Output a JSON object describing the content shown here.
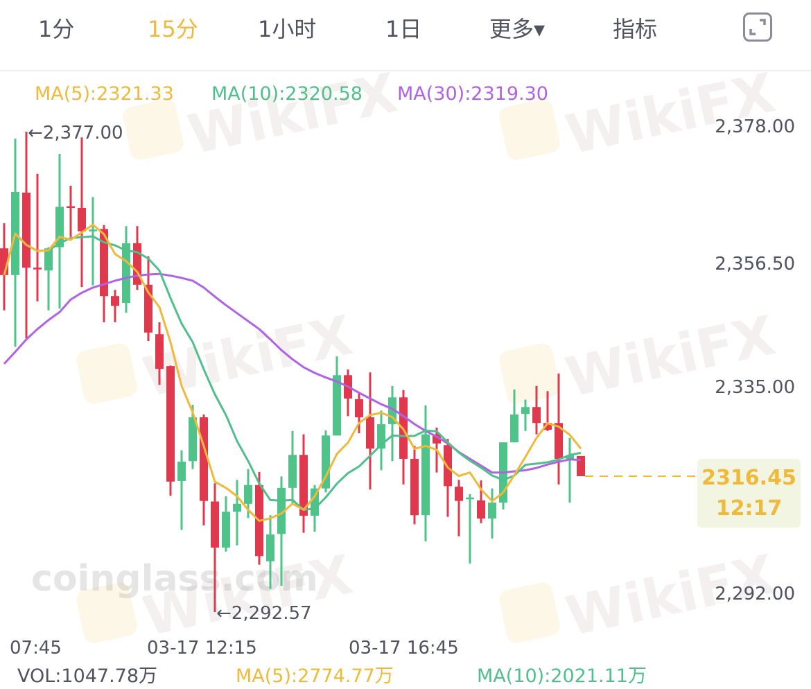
{
  "tabs": [
    {
      "label": "1分",
      "active": false
    },
    {
      "label": "15分",
      "active": true
    },
    {
      "label": "1小时",
      "active": false
    },
    {
      "label": "1日",
      "active": false
    },
    {
      "label": "更多▾",
      "active": false
    },
    {
      "label": "指标",
      "active": false
    }
  ],
  "fullscreen_icon": "expand-icon",
  "ma_legend": {
    "ma5": "MA(5):2321.33",
    "ma10": "MA(10):2320.58",
    "ma30": "MA(30):2319.30"
  },
  "watermarks": {
    "wikifx": "WikiFX",
    "coinglass": "coinglass.com"
  },
  "colors": {
    "up": "#4fc38a",
    "down": "#e0384d",
    "ma5": "#f0b93a",
    "ma10": "#4fbf8c",
    "ma30": "#b062e6",
    "active_tab": "#f0b93a",
    "text": "#50535f"
  },
  "markers": {
    "high": "←2,377.00",
    "low": "←2,292.57"
  },
  "current": {
    "price": "2316.45",
    "time": "12:17"
  },
  "volume_legend": {
    "vol": "VOL:1047.78万",
    "ma5": "MA(5):2774.77万",
    "ma10": "MA(10):2021.11万"
  },
  "chart_data": {
    "type": "candlestick",
    "interval": "15分",
    "y_ticks": [
      "2,378.00",
      "2,356.50",
      "2,335.00",
      "2,292.00"
    ],
    "x_ticks": [
      "07:45",
      "03-17 12:15",
      "03-17 16:45"
    ],
    "ylim": [
      2292,
      2378
    ],
    "last_price": 2316.45,
    "ohlc": [
      [
        2356.5,
        2360.9,
        2345.6,
        2351.8
      ],
      [
        2351.8,
        2375.8,
        2339.2,
        2366.4
      ],
      [
        2366.3,
        2377.0,
        2340.7,
        2353.1
      ],
      [
        2353.1,
        2369.6,
        2347.2,
        2352.9
      ],
      [
        2352.6,
        2356.7,
        2345.6,
        2356.5
      ],
      [
        2356.7,
        2373.1,
        2345.9,
        2363.8
      ],
      [
        2363.9,
        2367.5,
        2358.5,
        2363.7
      ],
      [
        2363.6,
        2376.0,
        2349.7,
        2359.5
      ],
      [
        2359.6,
        2365.5,
        2350.0,
        2359.8
      ],
      [
        2359.9,
        2360.6,
        2343.5,
        2348.1
      ],
      [
        2348.1,
        2349.2,
        2343.5,
        2346.4
      ],
      [
        2346.9,
        2360.4,
        2345.2,
        2357.4
      ],
      [
        2357.4,
        2360.4,
        2349.2,
        2350.1
      ],
      [
        2350.1,
        2355.1,
        2340.2,
        2341.7
      ],
      [
        2341.4,
        2343.5,
        2332.5,
        2335.3
      ],
      [
        2335.8,
        2335.9,
        2313.0,
        2315.5
      ],
      [
        2315.6,
        2321.0,
        2307.0,
        2319.0
      ],
      [
        2319.1,
        2329.0,
        2317.7,
        2326.8
      ],
      [
        2326.8,
        2327.3,
        2307.8,
        2312.1
      ],
      [
        2312.0,
        2315.2,
        2292.57,
        2303.9
      ],
      [
        2303.9,
        2312.9,
        2303.2,
        2310.2
      ],
      [
        2310.2,
        2315.8,
        2304.3,
        2311.6
      ],
      [
        2311.6,
        2317.7,
        2309.1,
        2314.9
      ],
      [
        2314.9,
        2317.2,
        2300.9,
        2302.4
      ],
      [
        2301.5,
        2309.6,
        2296.6,
        2306.2
      ],
      [
        2306.3,
        2316.4,
        2297.2,
        2314.4
      ],
      [
        2314.4,
        2324.4,
        2311.6,
        2320.2
      ],
      [
        2320.2,
        2323.8,
        2306.5,
        2309.5
      ],
      [
        2309.5,
        2314.9,
        2306.7,
        2314.3
      ],
      [
        2314.3,
        2324.5,
        2313.6,
        2323.6
      ],
      [
        2323.6,
        2337.5,
        2323.6,
        2334.2
      ],
      [
        2334.2,
        2335.2,
        2327.0,
        2330.1
      ],
      [
        2330.0,
        2331.3,
        2324.0,
        2326.8
      ],
      [
        2326.8,
        2334.7,
        2314.1,
        2321.3
      ],
      [
        2321.3,
        2328.0,
        2317.5,
        2325.6
      ],
      [
        2325.6,
        2332.3,
        2319.1,
        2330.3
      ],
      [
        2330.3,
        2331.6,
        2315.0,
        2319.5
      ],
      [
        2319.5,
        2321.8,
        2308.0,
        2309.6
      ],
      [
        2309.6,
        2328.9,
        2305.0,
        2323.8
      ],
      [
        2323.8,
        2325.0,
        2317.1,
        2322.2
      ],
      [
        2321.9,
        2323.0,
        2309.3,
        2314.7
      ],
      [
        2314.6,
        2315.8,
        2305.9,
        2312.1
      ],
      [
        2312.5,
        2313.3,
        2301.1,
        2312.7
      ],
      [
        2312.2,
        2315.7,
        2308.2,
        2309.0
      ],
      [
        2309.0,
        2314.3,
        2305.5,
        2311.8
      ],
      [
        2311.8,
        2322.4,
        2310.6,
        2322.4
      ],
      [
        2322.4,
        2331.7,
        2322.4,
        2327.3
      ],
      [
        2327.4,
        2329.9,
        2324.4,
        2328.6
      ],
      [
        2328.6,
        2332.3,
        2323.8,
        2325.8
      ],
      [
        2325.8,
        2331.4,
        2324.4,
        2324.6
      ],
      [
        2325.8,
        2334.5,
        2315.0,
        2319.5
      ],
      [
        2319.5,
        2323.2,
        2311.8,
        2320.1
      ],
      [
        2320.0,
        2320.0,
        2316.45,
        2316.45
      ]
    ],
    "ma30": [
      2336.2,
      2338.3,
      2340.5,
      2342.3,
      2343.9,
      2345.3,
      2347.5,
      2348.7,
      2349.6,
      2350.2,
      2350.8,
      2351.3,
      2351.7,
      2351.9,
      2352.0,
      2351.7,
      2351.3,
      2350.8,
      2349.6,
      2348.0,
      2346.5,
      2345.1,
      2343.7,
      2342.3,
      2340.5,
      2338.6,
      2337.0,
      2335.6,
      2334.6,
      2333.8,
      2333.1,
      2332.2,
      2331.1,
      2330.1,
      2329.1,
      2328.3,
      2327.0,
      2325.6,
      2324.4,
      2323.4,
      2322.2,
      2320.7,
      2319.5,
      2318.3,
      2317.1,
      2317.1,
      2317.3,
      2317.5,
      2317.9,
      2318.5,
      2319.0,
      2319.4,
      2319.3
    ]
  }
}
